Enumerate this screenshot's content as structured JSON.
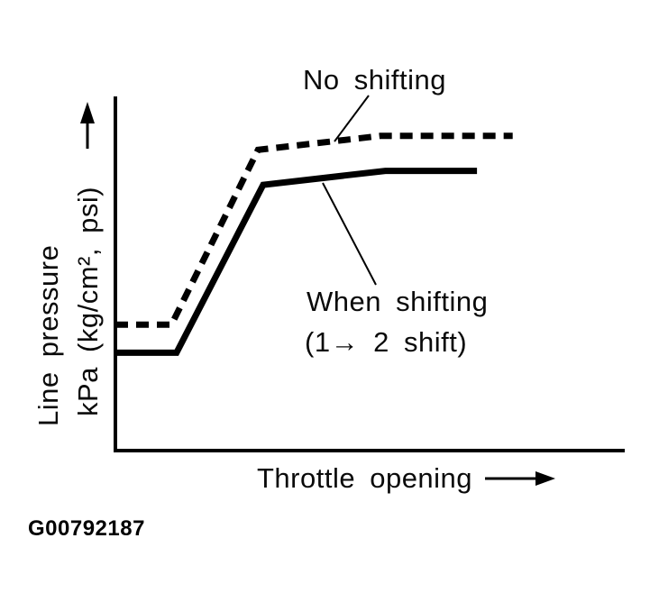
{
  "figure": {
    "code": "G00792187"
  },
  "labels": {
    "no_shifting": "No shifting",
    "when_shifting_line1": "When shifting",
    "when_shifting_line2": "(1→ 2 shift)",
    "x_axis": "Throttle opening",
    "y_axis_line1": "Line pressure",
    "y_axis_line2": "kPa (kg/cm², psi)",
    "figure_code": "G00792187"
  },
  "icons": {
    "y_axis_arrow": "up-arrow",
    "x_axis_arrow": "right-arrow",
    "shift_arrow": "right-arrow"
  },
  "colors": {
    "ink": "#000000",
    "background": "#ffffff"
  },
  "chart_data": {
    "type": "line",
    "title": "",
    "xlabel": "Throttle opening",
    "ylabel": "Line pressure kPa (kg/cm², psi)",
    "axes_quantified": false,
    "grid": false,
    "legend_position": "inline-annotations",
    "xlim": [
      0,
      100
    ],
    "ylim": [
      0,
      100
    ],
    "series": [
      {
        "name": "No shifting",
        "line_style": "dashed",
        "points": [
          [
            0,
            36
          ],
          [
            11,
            36
          ],
          [
            28,
            86
          ],
          [
            52,
            90
          ],
          [
            78,
            90
          ]
        ]
      },
      {
        "name": "When shifting (1→ 2 shift)",
        "line_style": "solid",
        "points": [
          [
            0,
            28
          ],
          [
            12,
            28
          ],
          [
            29,
            76
          ],
          [
            53,
            80
          ],
          [
            71,
            80
          ]
        ]
      }
    ],
    "annotations": [
      {
        "text": "No shifting",
        "points_to_series": "No shifting"
      },
      {
        "text": "When shifting (1→ 2 shift)",
        "points_to_series": "When shifting (1→ 2 shift)"
      }
    ]
  }
}
